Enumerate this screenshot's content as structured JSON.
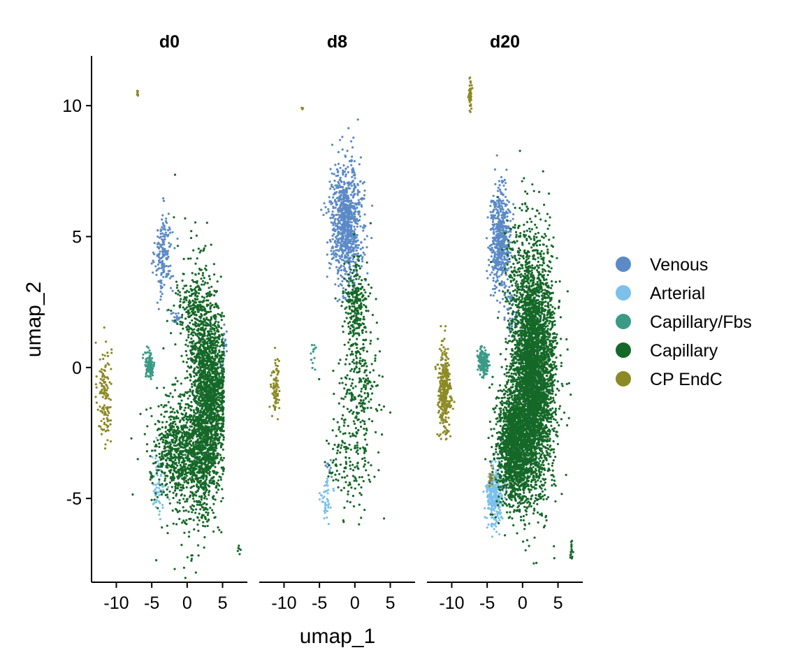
{
  "chart_data": {
    "type": "scatter",
    "panels": [
      "d0",
      "d8",
      "d20"
    ],
    "xlabel": "umap_1",
    "ylabel": "umap_2",
    "xlim": [
      -13.5,
      8.5
    ],
    "ylim": [
      -8.2,
      11.9
    ],
    "x_ticks": [
      -10,
      -5,
      0,
      5
    ],
    "x_tick_labels": [
      "-10",
      "-5",
      "0",
      "5"
    ],
    "y_ticks": [
      -5,
      0,
      5,
      10
    ],
    "y_tick_labels": [
      "-5",
      "0",
      "5",
      "10"
    ],
    "grid": false,
    "legend_position": "right",
    "series": [
      {
        "name": "Venous",
        "color": "#5b8ac6"
      },
      {
        "name": "Arterial",
        "color": "#7cc0ec"
      },
      {
        "name": "Capillary/Fbs",
        "color": "#3a9a86"
      },
      {
        "name": "Capillary",
        "color": "#156828"
      },
      {
        "name": "CP EndC",
        "color": "#8c8a24"
      }
    ],
    "clusters": [
      {
        "panel": 0,
        "series": 4,
        "n": 130,
        "cx": -11.7,
        "cy": -1.0,
        "sx": 0.5,
        "sy": 1.0,
        "shape": "g"
      },
      {
        "panel": 0,
        "series": 4,
        "n": 8,
        "cx": -7.0,
        "cy": 10.5,
        "sx": 0.08,
        "sy": 0.08,
        "shape": "g"
      },
      {
        "panel": 0,
        "series": 0,
        "n": 170,
        "cx": -3.3,
        "cy": 4.3,
        "sx": 0.6,
        "sy": 0.8,
        "shape": "g"
      },
      {
        "panel": 0,
        "series": 0,
        "n": 25,
        "cx": -1.5,
        "cy": 1.9,
        "sx": 0.3,
        "sy": 0.2,
        "shape": "g"
      },
      {
        "panel": 0,
        "series": 0,
        "n": 25,
        "cx": 5.2,
        "cy": 0.7,
        "sx": 0.3,
        "sy": 0.5,
        "shape": "g"
      },
      {
        "panel": 0,
        "series": 2,
        "n": 110,
        "cx": -5.3,
        "cy": 0.1,
        "sx": 0.35,
        "sy": 0.25,
        "shape": "g"
      },
      {
        "panel": 0,
        "series": 1,
        "n": 60,
        "cx": -4.0,
        "cy": -4.5,
        "sx": 0.5,
        "sy": 0.6,
        "shape": "g"
      },
      {
        "panel": 0,
        "series": 3,
        "n": 2300,
        "cx": 3.0,
        "cy": -1.2,
        "sx": 1.3,
        "sy": 2.2,
        "shape": "arc",
        "ax": 4.0,
        "ay": 0.2,
        "tilt": 0.06
      },
      {
        "panel": 0,
        "series": 3,
        "n": 850,
        "cx": -1.0,
        "cy": -3.2,
        "sx": 2.0,
        "sy": 1.0,
        "shape": "g"
      },
      {
        "panel": 0,
        "series": 3,
        "n": 130,
        "cx": 0.5,
        "cy": 2.2,
        "sx": 1.4,
        "sy": 0.6,
        "shape": "g"
      },
      {
        "panel": 0,
        "series": 3,
        "n": 6,
        "cx": 7.3,
        "cy": -7.0,
        "sx": 0.15,
        "sy": 0.12,
        "shape": "g"
      },
      {
        "panel": 1,
        "series": 4,
        "n": 80,
        "cx": -11.2,
        "cy": -0.8,
        "sx": 0.3,
        "sy": 0.6,
        "shape": "g"
      },
      {
        "panel": 1,
        "series": 4,
        "n": 3,
        "cx": -7.4,
        "cy": 9.9,
        "sx": 0.05,
        "sy": 0.05,
        "shape": "g"
      },
      {
        "panel": 1,
        "series": 0,
        "n": 900,
        "cx": -1.2,
        "cy": 5.5,
        "sx": 1.1,
        "sy": 1.1,
        "shape": "g"
      },
      {
        "panel": 1,
        "series": 0,
        "n": 10,
        "cx": -3.5,
        "cy": -3.9,
        "sx": 0.3,
        "sy": 0.3,
        "shape": "g"
      },
      {
        "panel": 1,
        "series": 2,
        "n": 12,
        "cx": -5.8,
        "cy": 0.4,
        "sx": 0.25,
        "sy": 0.3,
        "shape": "g"
      },
      {
        "panel": 1,
        "series": 1,
        "n": 45,
        "cx": -4.0,
        "cy": -4.9,
        "sx": 0.4,
        "sy": 0.5,
        "shape": "g"
      },
      {
        "panel": 1,
        "series": 3,
        "n": 260,
        "cx": 0.2,
        "cy": 2.3,
        "sx": 0.8,
        "sy": 0.9,
        "shape": "g"
      },
      {
        "panel": 1,
        "series": 3,
        "n": 340,
        "cx": 0.3,
        "cy": -1.3,
        "sx": 1.5,
        "sy": 1.8,
        "shape": "g"
      },
      {
        "panel": 1,
        "series": 3,
        "n": 60,
        "cx": -1.5,
        "cy": -3.6,
        "sx": 1.5,
        "sy": 0.7,
        "shape": "g"
      },
      {
        "panel": 2,
        "series": 4,
        "n": 320,
        "cx": -11.0,
        "cy": -0.9,
        "sx": 0.45,
        "sy": 0.85,
        "shape": "g"
      },
      {
        "panel": 2,
        "series": 4,
        "n": 50,
        "cx": -7.4,
        "cy": 10.4,
        "sx": 0.12,
        "sy": 0.25,
        "shape": "g"
      },
      {
        "panel": 2,
        "series": 0,
        "n": 550,
        "cx": -3.2,
        "cy": 4.9,
        "sx": 0.7,
        "sy": 1.0,
        "shape": "g"
      },
      {
        "panel": 2,
        "series": 0,
        "n": 40,
        "cx": -1.6,
        "cy": 2.1,
        "sx": 0.4,
        "sy": 0.5,
        "shape": "g"
      },
      {
        "panel": 2,
        "series": 2,
        "n": 170,
        "cx": -5.5,
        "cy": 0.2,
        "sx": 0.35,
        "sy": 0.25,
        "shape": "g"
      },
      {
        "panel": 2,
        "series": 1,
        "n": 320,
        "cx": -4.0,
        "cy": -4.9,
        "sx": 0.6,
        "sy": 0.5,
        "shape": "g"
      },
      {
        "panel": 2,
        "series": 3,
        "n": 4200,
        "cx": 1.5,
        "cy": -0.2,
        "sx": 1.4,
        "sy": 2.2,
        "shape": "g"
      },
      {
        "panel": 2,
        "series": 3,
        "n": 1500,
        "cx": -1.3,
        "cy": -3.0,
        "sx": 1.2,
        "sy": 1.1,
        "shape": "g"
      },
      {
        "panel": 2,
        "series": 3,
        "n": 100,
        "cx": -1.3,
        "cy": 4.0,
        "sx": 0.9,
        "sy": 1.0,
        "shape": "g"
      },
      {
        "panel": 2,
        "series": 4,
        "n": 15,
        "cx": -4.3,
        "cy": -4.2,
        "sx": 0.2,
        "sy": 0.2,
        "shape": "g"
      },
      {
        "panel": 2,
        "series": 3,
        "n": 14,
        "cx": 6.9,
        "cy": -7.0,
        "sx": 0.12,
        "sy": 0.25,
        "shape": "g"
      }
    ]
  }
}
